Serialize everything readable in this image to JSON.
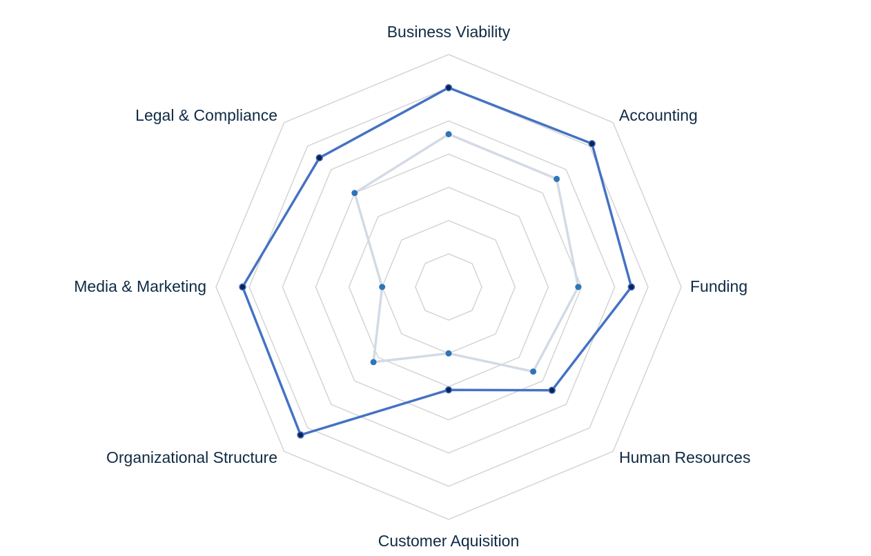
{
  "chart_data": {
    "type": "radar",
    "axes": [
      "Business Viability",
      "Accounting",
      "Funding",
      "Human Resources",
      "Customer Aquisition",
      "Organizational Structure",
      "Media & Marketing",
      "Legal & Compliance"
    ],
    "rlim": [
      0,
      7
    ],
    "rings": 7,
    "grid": true,
    "legend": "none",
    "series": [
      {
        "values": [
          6.0,
          6.1,
          5.5,
          4.4,
          3.1,
          6.3,
          6.2,
          5.5
        ],
        "color": "#4472c4",
        "marker_color": "#0d2357"
      },
      {
        "values": [
          4.6,
          4.6,
          3.9,
          3.6,
          2.0,
          3.2,
          2.0,
          4.0
        ],
        "color": "#d3dae6",
        "marker_color": "#2e75b6"
      }
    ]
  },
  "colors": {
    "grid": "#d4d4d4",
    "label": "#0f2a44"
  }
}
